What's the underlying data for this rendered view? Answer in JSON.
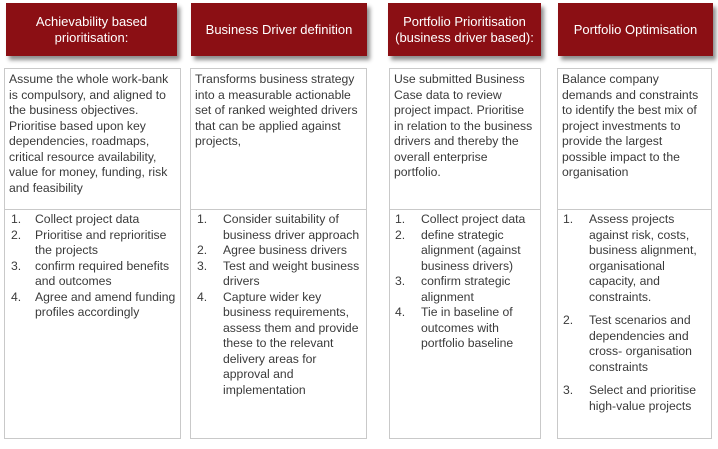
{
  "columns": [
    {
      "header": "Achievability based prioritisation:",
      "description": "Assume the whole work-bank is compulsory, and aligned to the business objectives.  Prioritise based upon key dependencies, roadmaps, critical resource availability, value for money, funding, risk and feasibility",
      "steps": [
        {
          "n": "1.",
          "text": "Collect project data"
        },
        {
          "n": "2.",
          "text": "Prioritise and reprioritise the projects"
        },
        {
          "n": "3.",
          "text": "confirm required benefits and outcomes"
        },
        {
          "n": "4.",
          "text": "Agree and amend funding profiles accordingly"
        }
      ]
    },
    {
      "header": "Business Driver definition",
      "description": "Transforms business strategy into a measurable actionable set of ranked weighted drivers that can be applied against projects,",
      "steps": [
        {
          "n": "1.",
          "text": "Consider suitability of business driver approach"
        },
        {
          "n": "2.",
          "text": "Agree business drivers"
        },
        {
          "n": "3.",
          "text": "Test and weight business drivers"
        },
        {
          "n": "4.",
          "text": "Capture wider key business requirements, assess them and provide these to the relevant delivery areas for approval and implementation"
        }
      ]
    },
    {
      "header": "Portfolio Prioritisation (business driver based):",
      "description": "Use submitted Business Case data to review project impact. Prioritise in relation to the business drivers and thereby the overall enterprise portfolio.",
      "steps": [
        {
          "n": "1.",
          "text": "Collect project data"
        },
        {
          "n": "2.",
          "text": "define strategic alignment (against business drivers)"
        },
        {
          "n": "3.",
          "text": " confirm strategic alignment"
        },
        {
          "n": "4.",
          "text": "Tie in baseline of outcomes with portfolio baseline"
        }
      ]
    },
    {
      "header": "Portfolio Optimisation",
      "description": "Balance company demands and constraints to identify the best mix of project investments to provide the largest possible impact to the organisation",
      "steps": [
        {
          "n": "1.",
          "text": "Assess projects against risk, costs, business alignment, organisational capacity, and constraints."
        },
        {
          "n": "2.",
          "text": "Test scenarios and dependencies and cross- organisation constraints"
        },
        {
          "n": "3.",
          "text": "Select and prioritise high-value projects"
        }
      ]
    }
  ]
}
